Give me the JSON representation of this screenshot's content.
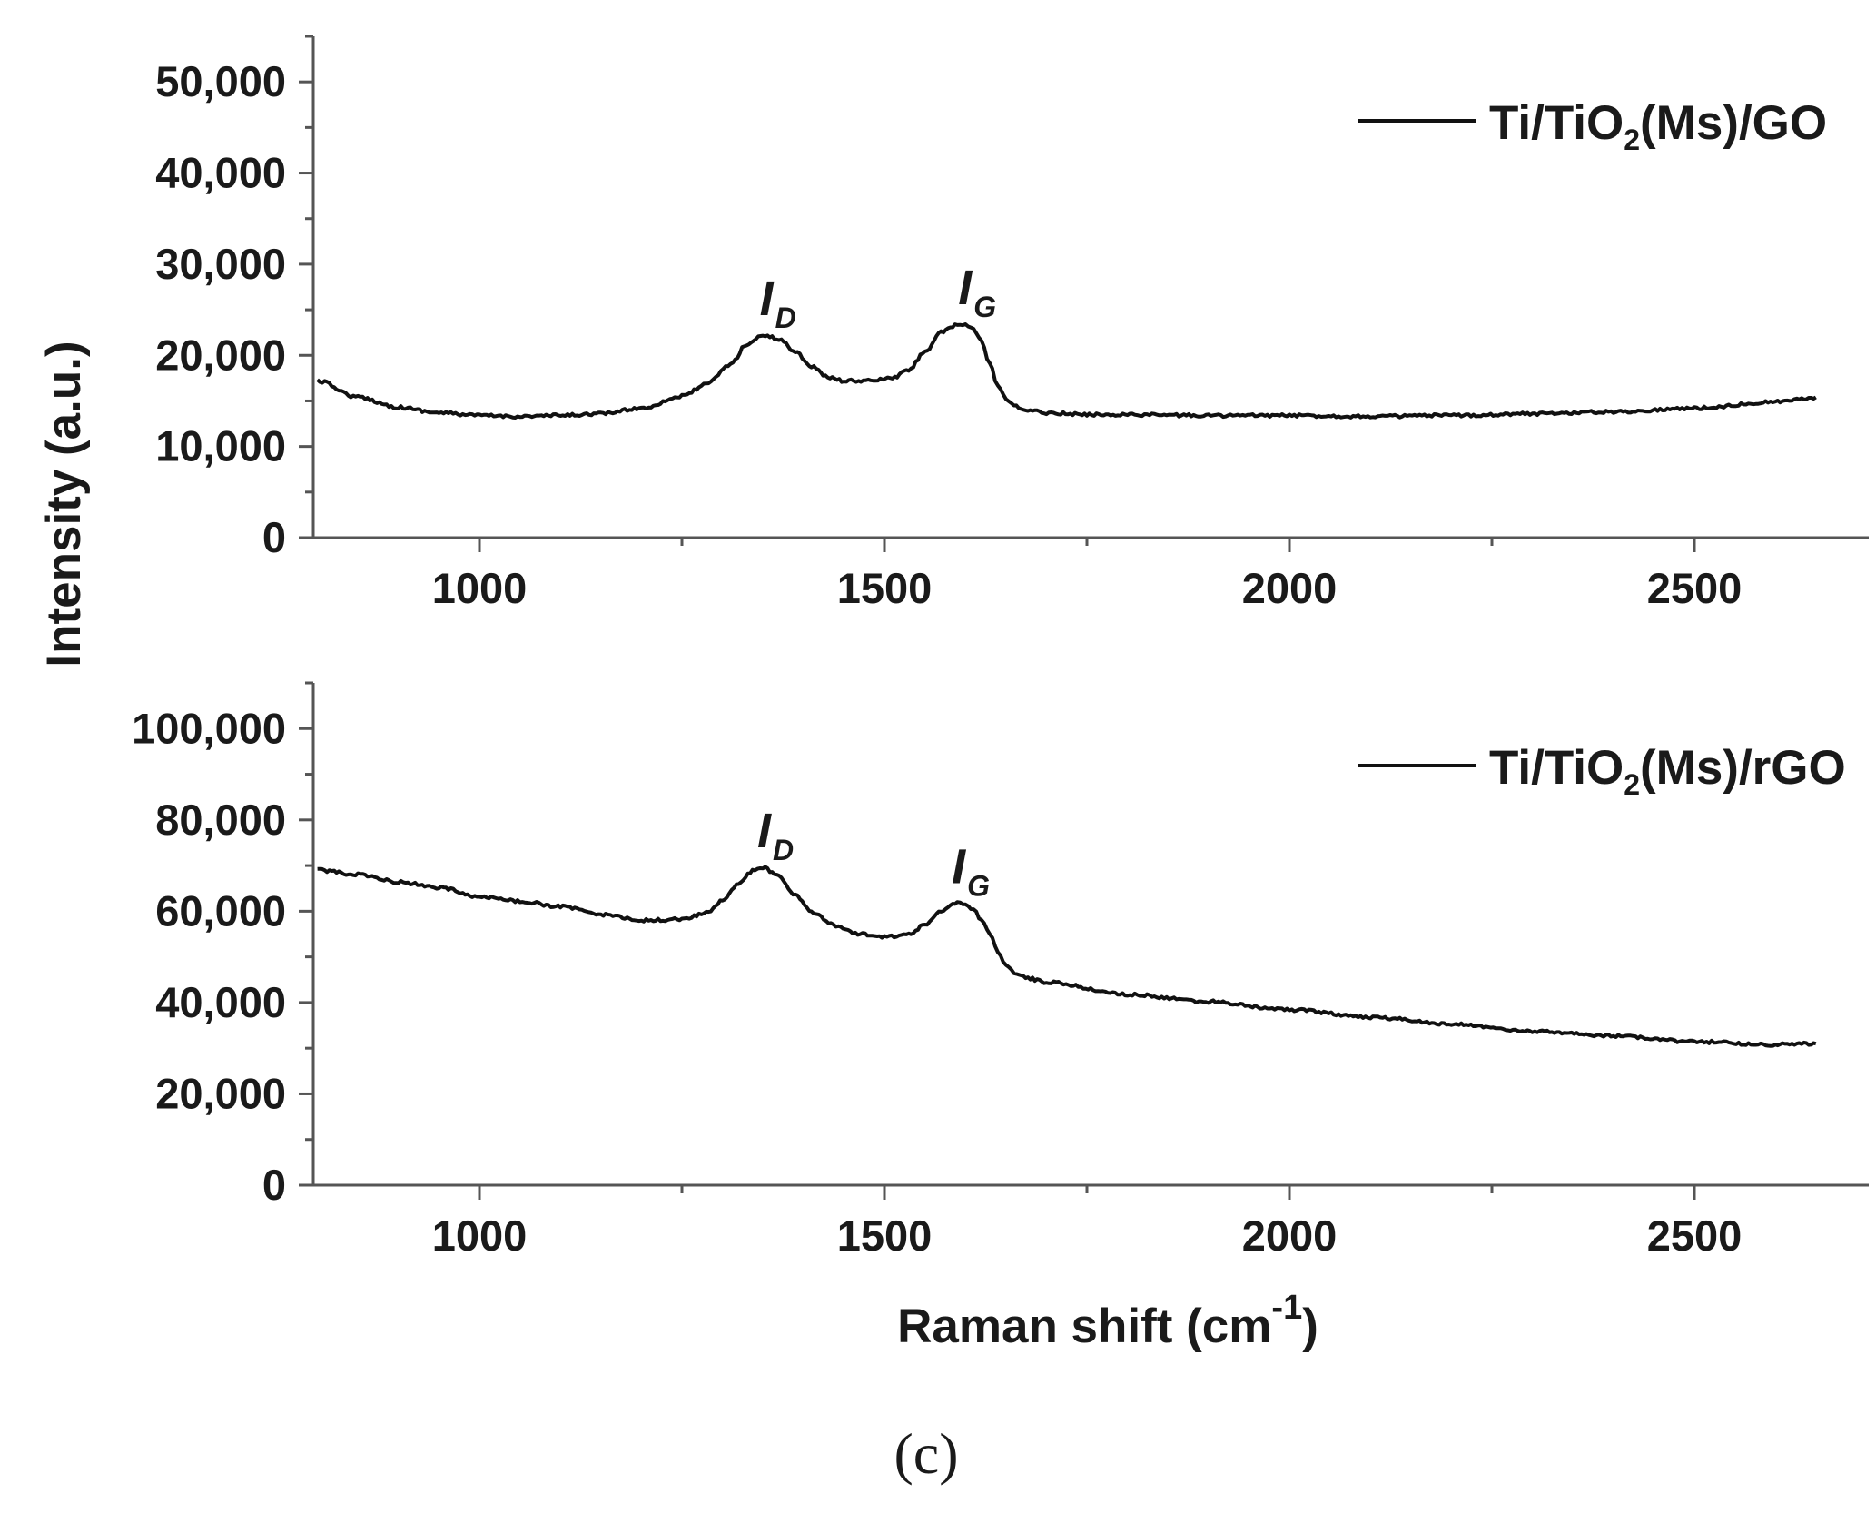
{
  "chart_data": [
    {
      "type": "line",
      "ylabel": "Intensity (a.u.)",
      "xlim": [
        800,
        2660
      ],
      "ylim": [
        0,
        55000
      ],
      "x_ticks": [
        "1000",
        "1500",
        "2000",
        "2500"
      ],
      "y_ticks": [
        "0",
        "10,000",
        "20,000",
        "30,000",
        "40,000",
        "50,000"
      ],
      "legend_position": "top-right",
      "series": [
        {
          "name": "Ti/TiO2(Ms)/GO",
          "name_parts": {
            "prefix": "Ti/TiO",
            "sub": "2",
            "suffix": "(Ms)/GO"
          },
          "x": [
            800,
            850,
            900,
            950,
            1000,
            1050,
            1100,
            1150,
            1200,
            1250,
            1280,
            1310,
            1330,
            1350,
            1370,
            1390,
            1410,
            1430,
            1450,
            1480,
            1510,
            1530,
            1550,
            1570,
            1590,
            1600,
            1610,
            1620,
            1630,
            1640,
            1650,
            1660,
            1680,
            1700,
            1750,
            1800,
            1900,
            2000,
            2100,
            2200,
            2300,
            2400,
            2500,
            2600,
            2650
          ],
          "y": [
            17200,
            15400,
            14300,
            13700,
            13400,
            13300,
            13400,
            13600,
            14200,
            15500,
            16800,
            19000,
            21200,
            22200,
            21800,
            20400,
            18800,
            17600,
            17200,
            17200,
            17500,
            18400,
            20400,
            22500,
            23300,
            23400,
            22900,
            21500,
            19000,
            16700,
            15200,
            14400,
            13900,
            13700,
            13500,
            13500,
            13400,
            13400,
            13300,
            13400,
            13600,
            13800,
            14200,
            14900,
            15400
          ]
        }
      ],
      "annotations": [
        {
          "main": "I",
          "sub": "D",
          "x": 1355,
          "y": 22200
        },
        {
          "main": "I",
          "sub": "G",
          "x": 1600,
          "y": 23400
        }
      ]
    },
    {
      "type": "line",
      "xlabel": "Raman shift (cm",
      "xlabel_sup": "-1",
      "xlabel_close": ")",
      "xlim": [
        800,
        2660
      ],
      "ylim": [
        0,
        110000
      ],
      "x_ticks": [
        "1000",
        "1500",
        "2000",
        "2500"
      ],
      "y_ticks": [
        "0",
        "20,000",
        "40,000",
        "60,000",
        "80,000",
        "100,000"
      ],
      "legend_position": "top-right",
      "series": [
        {
          "name": "Ti/TiO2(Ms)/rGO",
          "name_parts": {
            "prefix": "Ti/TiO",
            "sub": "2",
            "suffix": "(Ms)/rGO"
          },
          "x": [
            800,
            850,
            900,
            950,
            1000,
            1050,
            1100,
            1150,
            1200,
            1250,
            1280,
            1300,
            1320,
            1340,
            1350,
            1370,
            1390,
            1410,
            1440,
            1470,
            1500,
            1530,
            1550,
            1570,
            1590,
            1600,
            1610,
            1620,
            1630,
            1640,
            1650,
            1660,
            1680,
            1700,
            1800,
            1900,
            2000,
            2100,
            2200,
            2300,
            2400,
            2500,
            2600,
            2650
          ],
          "y": [
            69000,
            68000,
            66400,
            65200,
            63200,
            62200,
            61000,
            59300,
            58000,
            58200,
            59600,
            62300,
            66200,
            69200,
            69600,
            67600,
            63600,
            59800,
            56800,
            55000,
            54300,
            55000,
            57000,
            60000,
            61800,
            61600,
            60200,
            58100,
            55000,
            51000,
            48200,
            46500,
            45200,
            44400,
            41800,
            40200,
            38400,
            36800,
            35300,
            33700,
            32700,
            31400,
            30800,
            31000
          ]
        }
      ],
      "annotations": [
        {
          "main": "I",
          "sub": "D",
          "x": 1352,
          "y": 69600
        },
        {
          "main": "I",
          "sub": "G",
          "x": 1592,
          "y": 61800
        }
      ]
    }
  ],
  "panel_label": "(c)"
}
